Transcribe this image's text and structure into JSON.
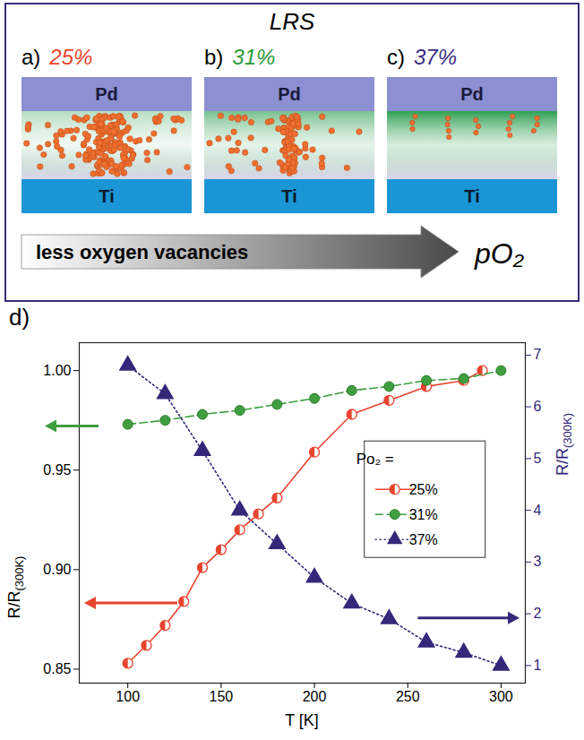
{
  "diagram": {
    "title": "LRS",
    "panels": [
      {
        "letter": "a)",
        "label": "25%",
        "color": "#e8442e",
        "top_layer": "Pd",
        "bottom_layer": "Ti"
      },
      {
        "letter": "b)",
        "label": "31%",
        "color": "#2a9a3a",
        "top_layer": "Pd",
        "bottom_layer": "Ti"
      },
      {
        "letter": "c)",
        "label": "37%",
        "color": "#3a2d80",
        "top_layer": "Pd",
        "bottom_layer": "Ti"
      }
    ],
    "arrow_label": "less oxygen vacancies",
    "arrow_end_label": "pO₂"
  },
  "chart_data": {
    "type": "line",
    "panel_label": "d)",
    "xlabel": "T [K]",
    "ylabel": "R/R(300K)",
    "y2label": "R/R(300K)",
    "xlim": [
      74,
      313
    ],
    "xticks": [
      100,
      150,
      200,
      250,
      300
    ],
    "ylim": [
      0.843,
      1.014
    ],
    "yticks": [
      0.85,
      {
        "value": 0.9,
        "label": "0.90"
      },
      0.95,
      {
        "value": 1,
        "label": "1.00"
      }
    ],
    "y2lim": [
      0.66,
      7.24
    ],
    "y2ticks": [
      1,
      2,
      3,
      4,
      5,
      6,
      7
    ],
    "legend_title": "Po₂ =",
    "legend": "right",
    "series": [
      {
        "name": "25%",
        "color": "#e8442e",
        "marker": "half_circle",
        "line_style": "solid",
        "x": [
          100,
          110,
          120,
          130,
          140,
          150,
          160,
          170,
          180,
          200,
          220,
          240,
          260,
          280,
          290
        ],
        "values": [
          0.853,
          0.862,
          0.872,
          0.884,
          0.901,
          0.91,
          0.92,
          0.928,
          0.936,
          0.959,
          0.978,
          0.985,
          0.992,
          0.995,
          1.0
        ]
      },
      {
        "name": "31%",
        "color": "#3f9f3f",
        "marker": "circle",
        "line_style": "dashed",
        "x": [
          100,
          120,
          140,
          160,
          180,
          200,
          220,
          240,
          260,
          280,
          300
        ],
        "values": [
          0.973,
          0.975,
          0.978,
          0.98,
          0.983,
          0.986,
          0.99,
          0.992,
          0.995,
          0.996,
          1.0
        ]
      },
      {
        "name": "37%",
        "color": "#33287a",
        "marker": "triangle",
        "line_style": "dotted",
        "axis": "y2",
        "x": [
          100,
          120,
          140,
          160,
          180,
          200,
          220,
          240,
          260,
          280,
          300
        ],
        "values": [
          6.8,
          6.25,
          5.15,
          4.0,
          3.35,
          2.7,
          2.2,
          1.9,
          1.45,
          1.25,
          1.0
        ]
      }
    ]
  }
}
